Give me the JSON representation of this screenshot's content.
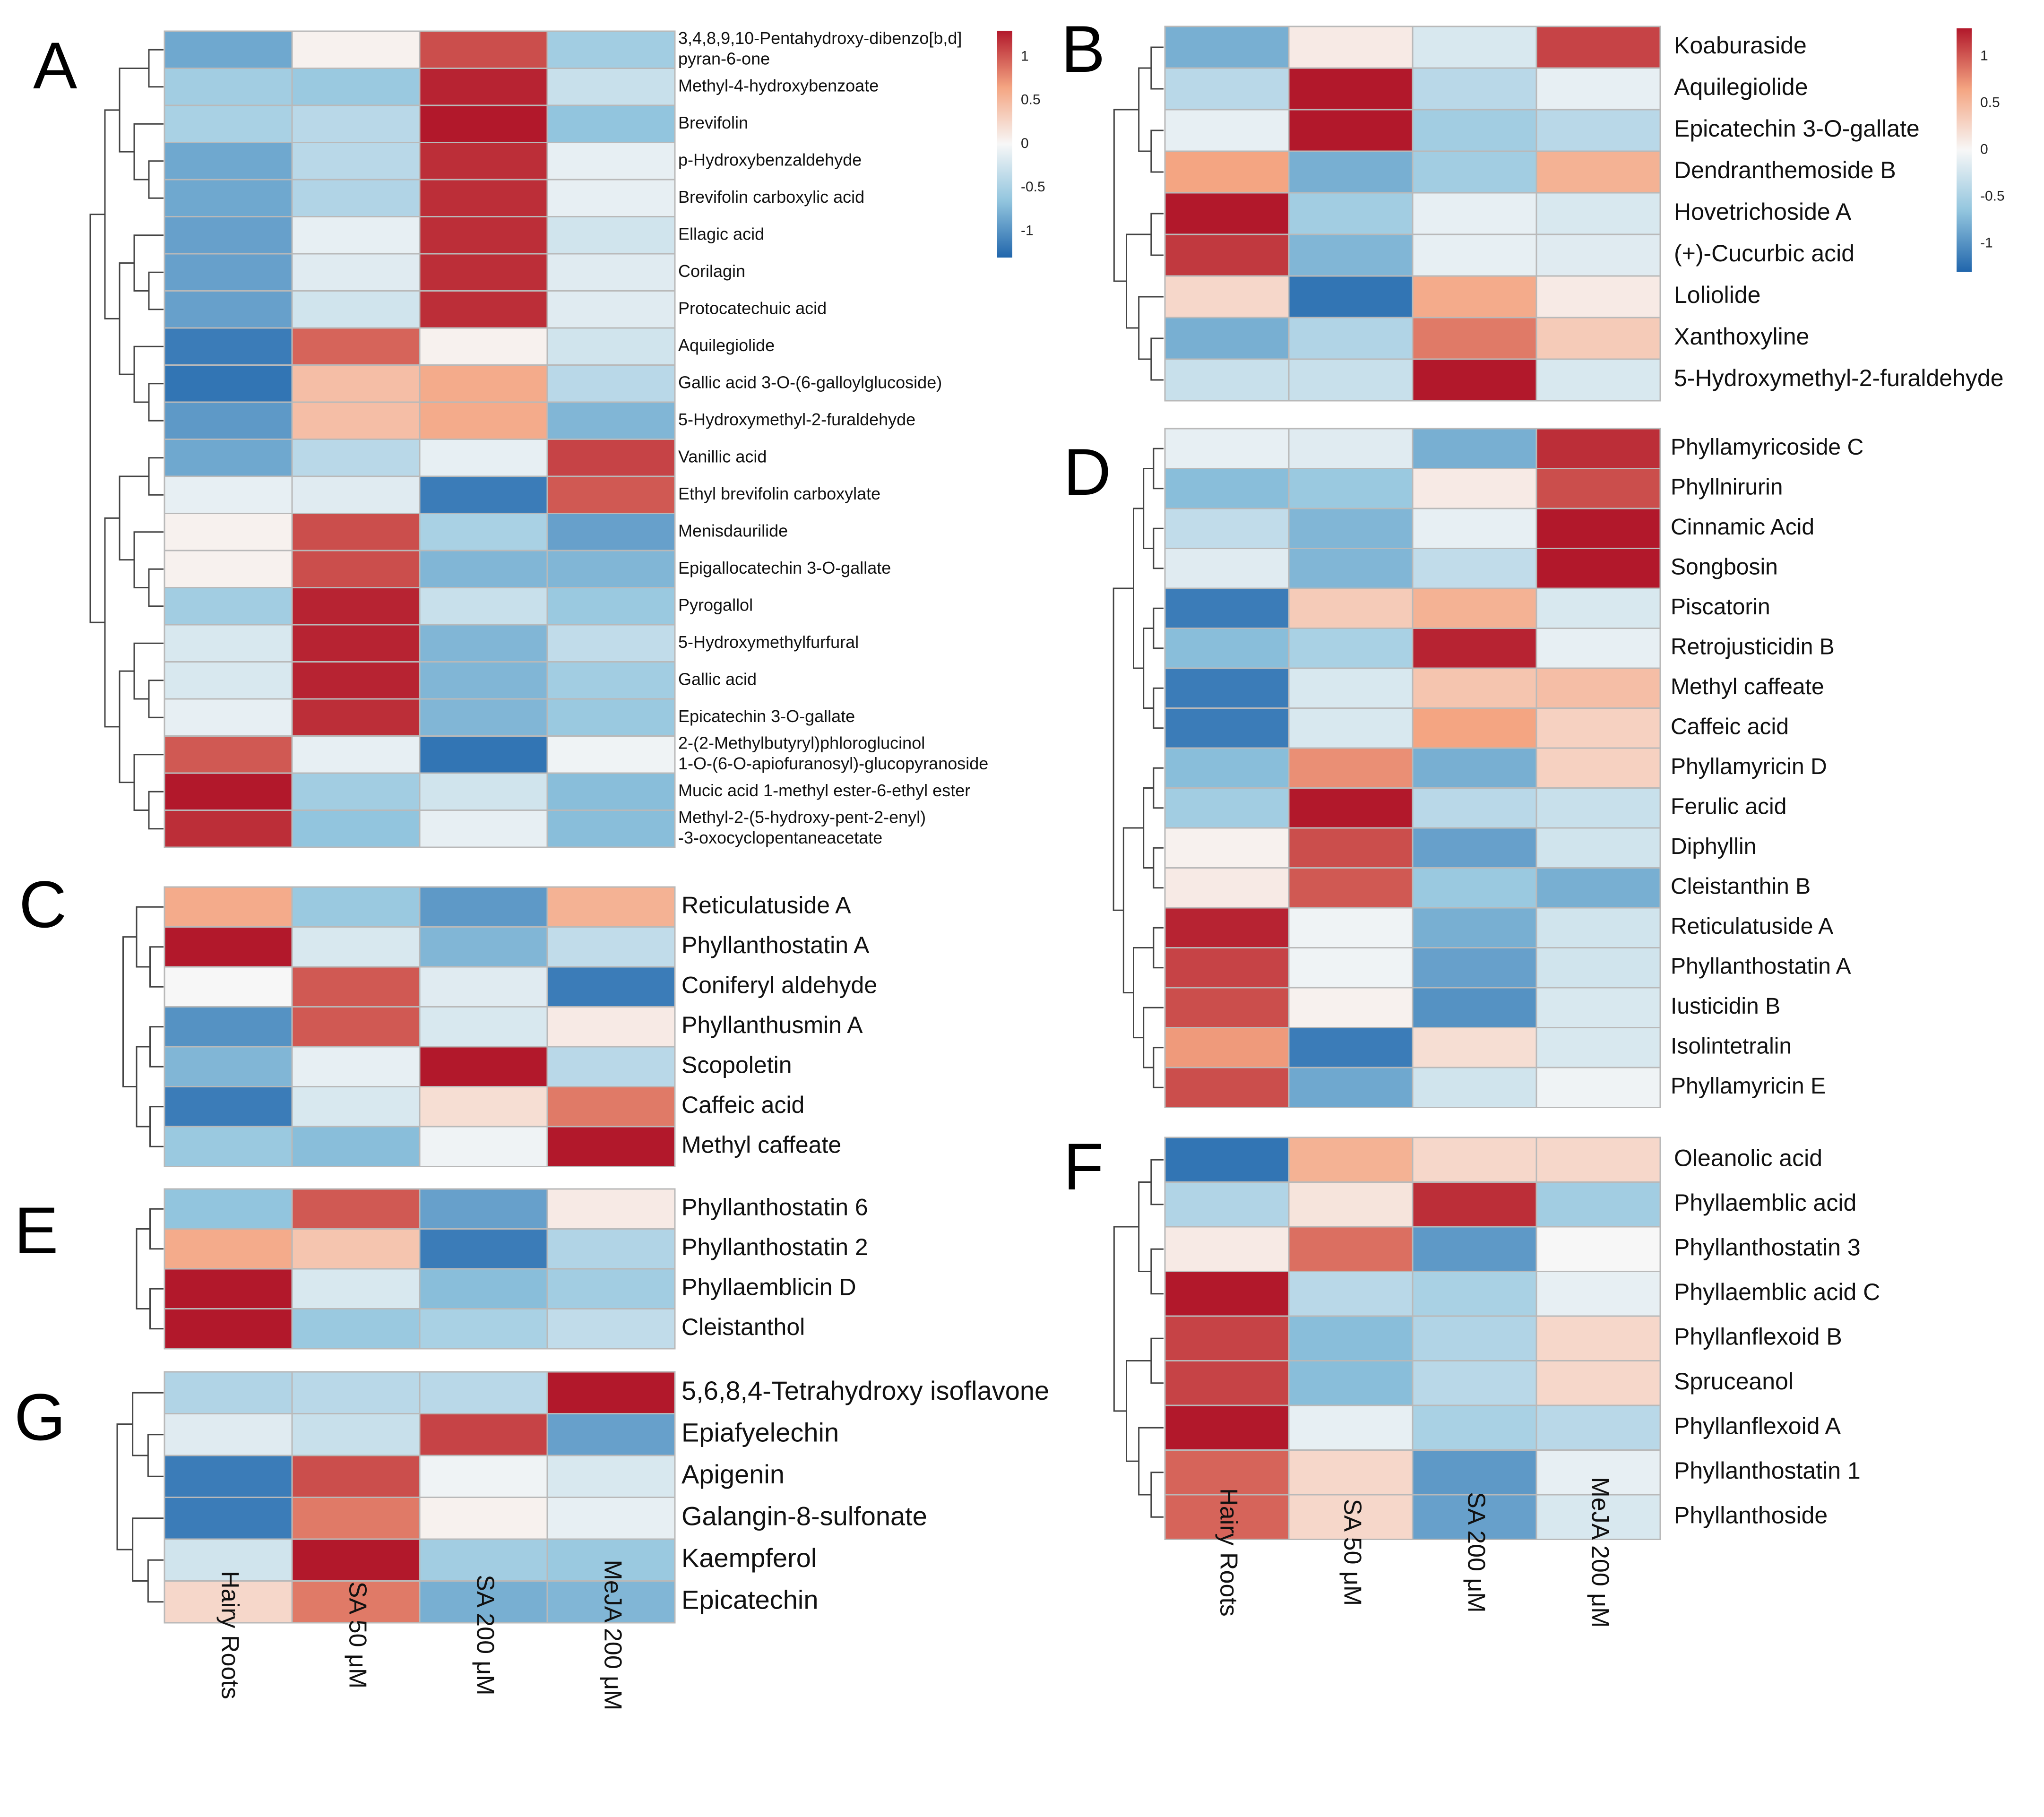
{
  "columns": [
    "Hairy Roots",
    "SA 50 μM",
    "SA 200 μM",
    "MeJA 200 μM"
  ],
  "legend": {
    "ticks": [
      1,
      0.5,
      0,
      -0.5,
      -1
    ],
    "tick_labels": [
      "1",
      "0.5",
      "0",
      "-0.5",
      "-1"
    ],
    "range": [
      -1.3,
      1.3
    ]
  },
  "colors": {
    "low": "#2166ac",
    "mid": "#f7f7f7",
    "high": "#b2182b"
  },
  "chart_data": [
    {
      "panel": "A",
      "type": "heatmap",
      "rows": [
        {
          "name": [
            "3,4,8,9,10-Pentahydroxy-dibenzo[b,d]",
            "pyran-6-one"
          ],
          "values": [
            -0.85,
            0.05,
            1.05,
            -0.55
          ]
        },
        {
          "name": [
            "Methyl-4-hydroxybenzoate"
          ],
          "values": [
            -0.55,
            -0.6,
            1.25,
            -0.3
          ]
        },
        {
          "name": [
            "Brevifolin"
          ],
          "values": [
            -0.5,
            -0.4,
            1.3,
            -0.65
          ]
        },
        {
          "name": [
            "p-Hydroxybenzaldehyde"
          ],
          "values": [
            -0.85,
            -0.4,
            1.2,
            -0.1
          ]
        },
        {
          "name": [
            "Brevifolin carboxylic acid"
          ],
          "values": [
            -0.85,
            -0.45,
            1.2,
            -0.1
          ]
        },
        {
          "name": [
            "Ellagic acid"
          ],
          "values": [
            -0.9,
            -0.1,
            1.2,
            -0.25
          ]
        },
        {
          "name": [
            "Corilagin"
          ],
          "values": [
            -0.9,
            -0.15,
            1.2,
            -0.15
          ]
        },
        {
          "name": [
            "Protocatechuic acid"
          ],
          "values": [
            -0.9,
            -0.25,
            1.2,
            -0.15
          ]
        },
        {
          "name": [
            "Aquilegiolide"
          ],
          "values": [
            -1.15,
            0.95,
            0.05,
            -0.25
          ]
        },
        {
          "name": [
            "Gallic acid 3-O-(6-galloylglucoside)"
          ],
          "values": [
            -1.2,
            0.45,
            0.6,
            -0.4
          ]
        },
        {
          "name": [
            "5-Hydroxymethyl-2-furaldehyde"
          ],
          "values": [
            -0.95,
            0.45,
            0.6,
            -0.75
          ]
        },
        {
          "name": [
            "Vanillic acid"
          ],
          "values": [
            -0.85,
            -0.4,
            -0.1,
            1.1
          ]
        },
        {
          "name": [
            "Ethyl brevifolin carboxylate"
          ],
          "values": [
            -0.1,
            -0.15,
            -1.15,
            1.0
          ]
        },
        {
          "name": [
            "Menisdaurilide"
          ],
          "values": [
            0.05,
            1.05,
            -0.5,
            -0.9
          ]
        },
        {
          "name": [
            "Epigallocatechin 3-O-gallate"
          ],
          "values": [
            0.05,
            1.05,
            -0.75,
            -0.75
          ]
        },
        {
          "name": [
            "Pyrogallol"
          ],
          "values": [
            -0.55,
            1.25,
            -0.3,
            -0.6
          ]
        },
        {
          "name": [
            "5-Hydroxymethylfurfural"
          ],
          "values": [
            -0.2,
            1.25,
            -0.75,
            -0.35
          ]
        },
        {
          "name": [
            "Gallic acid"
          ],
          "values": [
            -0.2,
            1.25,
            -0.75,
            -0.55
          ]
        },
        {
          "name": [
            "Epicatechin 3-O-gallate"
          ],
          "values": [
            -0.1,
            1.2,
            -0.75,
            -0.6
          ]
        },
        {
          "name": [
            "2-(2-Methylbutyryl)phloroglucinol",
            "1-O-(6-O-apiofuranosyl)-glucopyranoside"
          ],
          "values": [
            1.0,
            -0.1,
            -1.2,
            -0.05
          ]
        },
        {
          "name": [
            "Mucic acid 1-methyl ester-6-ethyl ester"
          ],
          "values": [
            1.3,
            -0.55,
            -0.25,
            -0.7
          ]
        },
        {
          "name": [
            "Methyl-2-(5-hydroxy-pent-2-enyl)",
            "-3-oxocyclopentaneacetate"
          ],
          "values": [
            1.2,
            -0.65,
            -0.1,
            -0.7
          ]
        }
      ]
    },
    {
      "panel": "B",
      "type": "heatmap",
      "rows": [
        {
          "name": [
            "Koaburaside"
          ],
          "values": [
            -0.8,
            0.1,
            -0.2,
            1.1
          ]
        },
        {
          "name": [
            "Aquilegiolide"
          ],
          "values": [
            -0.4,
            1.3,
            -0.4,
            -0.1
          ]
        },
        {
          "name": [
            "Epicatechin 3-O-gallate"
          ],
          "values": [
            -0.1,
            1.3,
            -0.55,
            -0.4
          ]
        },
        {
          "name": [
            "Dendranthemoside B"
          ],
          "values": [
            0.65,
            -0.8,
            -0.55,
            0.55
          ]
        },
        {
          "name": [
            "Hovetrichoside A"
          ],
          "values": [
            1.3,
            -0.55,
            -0.1,
            -0.2
          ]
        },
        {
          "name": [
            "(+)-Cucurbic acid"
          ],
          "values": [
            1.15,
            -0.75,
            -0.1,
            -0.15
          ]
        },
        {
          "name": [
            "Loliolide"
          ],
          "values": [
            0.25,
            -1.2,
            0.6,
            0.1
          ]
        },
        {
          "name": [
            "Xanthoxyline"
          ],
          "values": [
            -0.8,
            -0.45,
            0.85,
            0.35
          ]
        },
        {
          "name": [
            "5-Hydroxymethyl-2-furaldehyde"
          ],
          "values": [
            -0.3,
            -0.3,
            1.3,
            -0.2
          ]
        }
      ]
    },
    {
      "panel": "C",
      "type": "heatmap",
      "rows": [
        {
          "name": [
            "Reticulatuside A"
          ],
          "values": [
            0.6,
            -0.6,
            -0.95,
            0.55
          ]
        },
        {
          "name": [
            "Phyllanthostatin A"
          ],
          "values": [
            1.3,
            -0.2,
            -0.75,
            -0.35
          ]
        },
        {
          "name": [
            "Coniferyl aldehyde"
          ],
          "values": [
            0.0,
            1.0,
            -0.15,
            -1.15
          ]
        },
        {
          "name": [
            "Phyllanthusmin A"
          ],
          "values": [
            -1.0,
            1.0,
            -0.2,
            0.1
          ]
        },
        {
          "name": [
            "Scopoletin"
          ],
          "values": [
            -0.75,
            -0.1,
            1.3,
            -0.4
          ]
        },
        {
          "name": [
            "Caffeic acid"
          ],
          "values": [
            -1.15,
            -0.2,
            0.2,
            0.85
          ]
        },
        {
          "name": [
            "Methyl caffeate"
          ],
          "values": [
            -0.6,
            -0.7,
            -0.05,
            1.3
          ]
        }
      ]
    },
    {
      "panel": "D",
      "type": "heatmap",
      "rows": [
        {
          "name": [
            "Phyllamyricoside C"
          ],
          "values": [
            -0.1,
            -0.15,
            -0.8,
            1.2
          ]
        },
        {
          "name": [
            "Phyllnirurin"
          ],
          "values": [
            -0.7,
            -0.6,
            0.1,
            1.05
          ]
        },
        {
          "name": [
            "Cinnamic Acid"
          ],
          "values": [
            -0.35,
            -0.75,
            -0.1,
            1.3
          ]
        },
        {
          "name": [
            "Songbosin"
          ],
          "values": [
            -0.15,
            -0.75,
            -0.35,
            1.3
          ]
        },
        {
          "name": [
            "Piscatorin"
          ],
          "values": [
            -1.15,
            0.35,
            0.55,
            -0.2
          ]
        },
        {
          "name": [
            "Retrojusticidin B"
          ],
          "values": [
            -0.7,
            -0.5,
            1.25,
            -0.1
          ]
        },
        {
          "name": [
            "Methyl caffeate"
          ],
          "values": [
            -1.15,
            -0.2,
            0.4,
            0.45
          ]
        },
        {
          "name": [
            "Caffeic acid"
          ],
          "values": [
            -1.15,
            -0.2,
            0.65,
            0.3
          ]
        },
        {
          "name": [
            "Phyllamyricin D"
          ],
          "values": [
            -0.7,
            0.75,
            -0.8,
            0.3
          ]
        },
        {
          "name": [
            "Ferulic acid"
          ],
          "values": [
            -0.55,
            1.3,
            -0.4,
            -0.3
          ]
        },
        {
          "name": [
            "Diphyllin"
          ],
          "values": [
            0.05,
            1.05,
            -0.9,
            -0.25
          ]
        },
        {
          "name": [
            "Cleistanthin B"
          ],
          "values": [
            0.1,
            1.0,
            -0.6,
            -0.8
          ]
        },
        {
          "name": [
            "Reticulatuside A"
          ],
          "values": [
            1.25,
            -0.05,
            -0.8,
            -0.25
          ]
        },
        {
          "name": [
            "Phyllanthostatin A"
          ],
          "values": [
            1.1,
            -0.05,
            -0.9,
            -0.25
          ]
        },
        {
          "name": [
            "Iusticidin B"
          ],
          "values": [
            1.05,
            0.05,
            -1.0,
            -0.2
          ]
        },
        {
          "name": [
            "Isolintetralin"
          ],
          "values": [
            0.7,
            -1.15,
            0.2,
            -0.2
          ]
        },
        {
          "name": [
            "Phyllamyricin E"
          ],
          "values": [
            1.05,
            -0.85,
            -0.25,
            -0.05
          ]
        }
      ]
    },
    {
      "panel": "E",
      "type": "heatmap",
      "rows": [
        {
          "name": [
            "Phyllanthostatin 6"
          ],
          "values": [
            -0.65,
            1.0,
            -0.9,
            0.1
          ]
        },
        {
          "name": [
            "Phyllanthostatin 2"
          ],
          "values": [
            0.6,
            0.4,
            -1.15,
            -0.45
          ]
        },
        {
          "name": [
            "Phyllaemblicin D"
          ],
          "values": [
            1.3,
            -0.2,
            -0.7,
            -0.55
          ]
        },
        {
          "name": [
            "Cleistanthol"
          ],
          "values": [
            1.3,
            -0.6,
            -0.5,
            -0.35
          ]
        }
      ]
    },
    {
      "panel": "F",
      "type": "heatmap",
      "rows": [
        {
          "name": [
            "Oleanolic acid"
          ],
          "values": [
            -1.2,
            0.55,
            0.25,
            0.25
          ]
        },
        {
          "name": [
            "Phyllaemblic acid"
          ],
          "values": [
            -0.45,
            0.15,
            1.2,
            -0.55
          ]
        },
        {
          "name": [
            "Phyllanthostatin 3"
          ],
          "values": [
            0.1,
            0.9,
            -0.95,
            0.0
          ]
        },
        {
          "name": [
            "Phyllaemblic acid C"
          ],
          "values": [
            1.3,
            -0.4,
            -0.5,
            -0.1
          ]
        },
        {
          "name": [
            "Phyllanflexoid B"
          ],
          "values": [
            1.1,
            -0.7,
            -0.45,
            0.25
          ]
        },
        {
          "name": [
            "Spruceanol"
          ],
          "values": [
            1.1,
            -0.7,
            -0.4,
            0.25
          ]
        },
        {
          "name": [
            "Phyllanflexoid A"
          ],
          "values": [
            1.3,
            -0.1,
            -0.5,
            -0.4
          ]
        },
        {
          "name": [
            "Phyllanthostatin 1"
          ],
          "values": [
            0.95,
            0.25,
            -0.95,
            -0.1
          ]
        },
        {
          "name": [
            "Phyllanthoside"
          ],
          "values": [
            0.95,
            0.25,
            -0.9,
            -0.2
          ]
        }
      ]
    },
    {
      "panel": "G",
      "type": "heatmap",
      "rows": [
        {
          "name": [
            "5,6,8,4-Tetrahydroxy isoflavone"
          ],
          "values": [
            -0.45,
            -0.4,
            -0.4,
            1.3
          ]
        },
        {
          "name": [
            "Epiafyelechin"
          ],
          "values": [
            -0.15,
            -0.3,
            1.1,
            -0.9
          ]
        },
        {
          "name": [
            "Apigenin"
          ],
          "values": [
            -1.15,
            1.05,
            -0.05,
            -0.2
          ]
        },
        {
          "name": [
            "Galangin-8-sulfonate"
          ],
          "values": [
            -1.15,
            0.85,
            0.05,
            -0.1
          ]
        },
        {
          "name": [
            "Kaempferol"
          ],
          "values": [
            -0.25,
            1.3,
            -0.55,
            -0.6
          ]
        },
        {
          "name": [
            "Epicatechin"
          ],
          "values": [
            0.25,
            0.85,
            -0.8,
            -0.75
          ]
        }
      ]
    }
  ]
}
